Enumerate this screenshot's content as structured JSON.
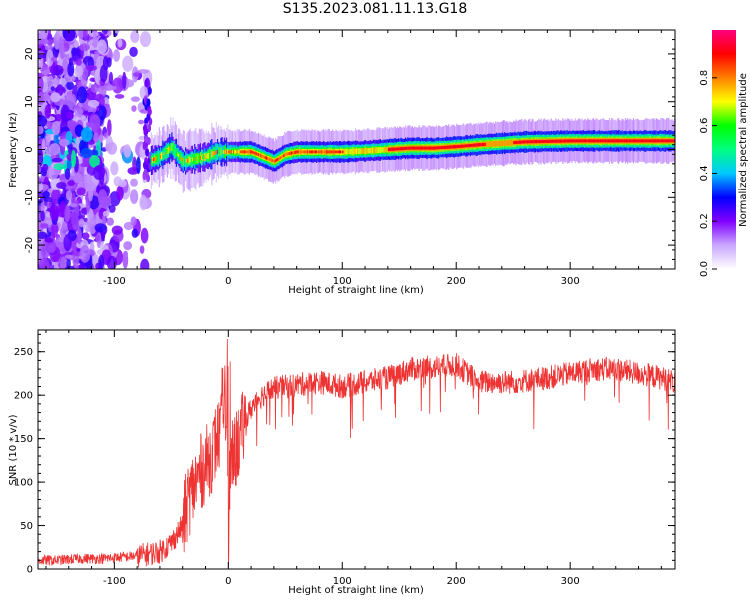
{
  "title": "S135.2023.081.11.13.G18",
  "colorbar": {
    "label": "Normalized spectral amplitude",
    "ticks": [
      0.0,
      0.2,
      0.4,
      0.6,
      0.8
    ],
    "tick_labels": [
      "0.0",
      "0.2",
      "0.4",
      "0.6",
      "0.8"
    ],
    "range": [
      0,
      1
    ],
    "colors": [
      "#ffffff",
      "#c9a6ff",
      "#8000ff",
      "#0000ff",
      "#00c8ff",
      "#00ff80",
      "#00ff00",
      "#ffff00",
      "#ff8000",
      "#ff0000",
      "#ff0080"
    ]
  },
  "chart_data": [
    {
      "type": "heatmap",
      "xlabel": "Height of straight line (km)",
      "ylabel": "Frequency (Hz)",
      "xlim": [
        -167,
        392
      ],
      "ylim": [
        -25,
        25
      ],
      "x_ticks": [
        -100,
        0,
        100,
        200,
        300
      ],
      "x_tick_labels": [
        "-100",
        "0",
        "100",
        "200",
        "300"
      ],
      "y_ticks": [
        -20,
        -10,
        0,
        10,
        20
      ],
      "y_tick_labels": [
        "-20",
        "-10",
        "0",
        "10",
        "20"
      ],
      "ridge": {
        "x": [
          -70,
          -60,
          -50,
          -40,
          -30,
          -20,
          -10,
          0,
          20,
          30,
          40,
          50,
          60,
          80,
          100,
          120,
          140,
          160,
          180,
          200,
          220,
          240,
          260,
          280,
          300,
          320,
          340,
          360,
          380,
          392
        ],
        "y": [
          -2.5,
          -1.5,
          0.5,
          -2.5,
          -2,
          -1.5,
          -0.5,
          -0.5,
          -0.5,
          -1.5,
          -2.5,
          -1,
          -0.5,
          -0.5,
          -0.5,
          -0.3,
          0,
          0.3,
          0.3,
          0.6,
          1,
          1.3,
          1.6,
          1.7,
          1.8,
          1.8,
          1.8,
          1.8,
          1.8,
          1.8
        ]
      }
    },
    {
      "type": "line",
      "xlabel": "Height of straight line (km)",
      "ylabel": "SNR (10 * v/v)",
      "xlim": [
        -167,
        392
      ],
      "ylim": [
        0,
        275
      ],
      "x_ticks": [
        -100,
        0,
        100,
        200,
        300
      ],
      "x_tick_labels": [
        "-100",
        "0",
        "100",
        "200",
        "300"
      ],
      "y_ticks": [
        0,
        50,
        100,
        150,
        200,
        250
      ],
      "y_tick_labels": [
        "0",
        "50",
        "100",
        "150",
        "200",
        "250"
      ],
      "color": "#ee3333",
      "series": [
        {
          "x": [
            -167,
            -150,
            -130,
            -110,
            -90,
            -75,
            -60,
            -50,
            -40,
            -35,
            -30,
            -25,
            -20,
            -15,
            -10,
            -5,
            -2,
            0,
            2,
            5,
            10,
            15,
            20,
            25,
            30,
            40,
            50,
            60,
            80,
            100,
            120,
            140,
            150,
            160,
            180,
            200,
            210,
            220,
            250,
            280,
            300,
            320,
            340,
            360,
            380,
            392
          ],
          "y": [
            10,
            10,
            12,
            12,
            14,
            16,
            20,
            30,
            50,
            80,
            95,
            110,
            120,
            130,
            150,
            160,
            175,
            80,
            120,
            130,
            150,
            170,
            185,
            195,
            200,
            208,
            210,
            212,
            215,
            210,
            215,
            220,
            225,
            230,
            232,
            235,
            225,
            215,
            215,
            220,
            225,
            230,
            230,
            225,
            220,
            215
          ]
        }
      ]
    }
  ]
}
